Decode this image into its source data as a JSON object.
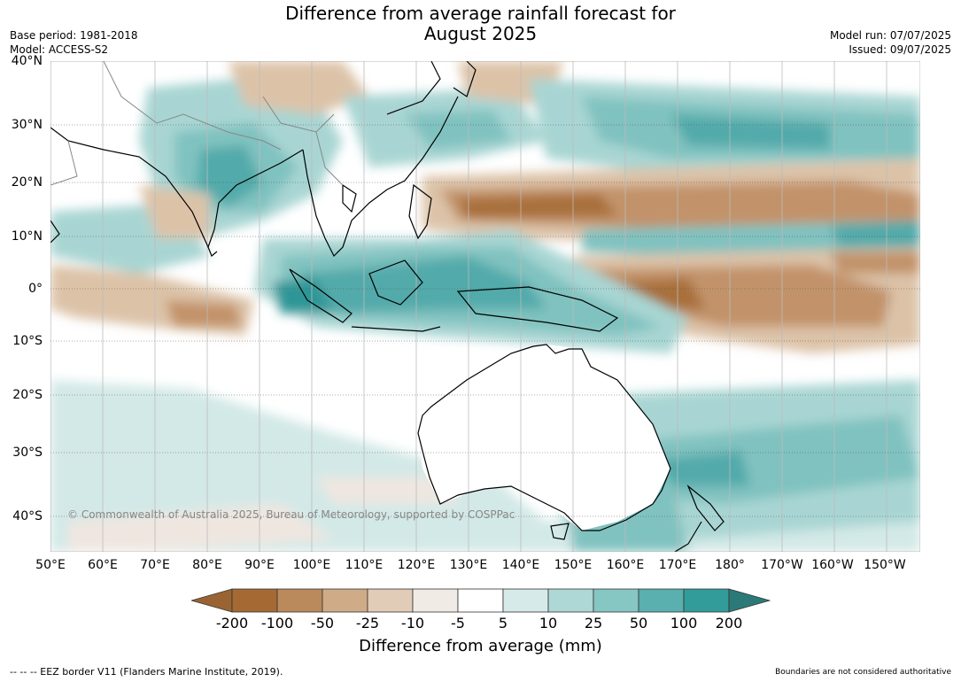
{
  "title": {
    "line1": "Difference from average rainfall forecast for",
    "line2": "August 2025"
  },
  "meta": {
    "base_period": "Base period: 1981-2018",
    "model": "Model: ACCESS-S2",
    "model_run": "Model run: 07/07/2025",
    "issued": "Issued: 09/07/2025"
  },
  "map": {
    "lat_labels": [
      "40°N",
      "30°N",
      "20°N",
      "10°N",
      "0°",
      "10°S",
      "20°S",
      "30°S",
      "40°S"
    ],
    "lon_labels": [
      "50°E",
      "60°E",
      "70°E",
      "80°E",
      "90°E",
      "100°E",
      "110°E",
      "120°E",
      "130°E",
      "140°E",
      "150°E",
      "160°E",
      "170°E",
      "180°",
      "170°W",
      "160°W",
      "150°W"
    ],
    "copyright": "© Commonwealth of Australia 2025, Bureau of Meteorology, supported by COSPPac",
    "colors": {
      "dry_strong": "#a8703a",
      "dry_mid": "#c2936a",
      "dry_light": "#dcc3a8",
      "dry_faint": "#efe6e0",
      "wet_faint": "#d3e9e7",
      "wet_light": "#a8d5d3",
      "wet_mid": "#80c2c0",
      "wet_strong": "#52aaaa",
      "wet_max": "#2e9696"
    }
  },
  "colorbar": {
    "title": "Difference from average (mm)",
    "labels": [
      "-200",
      "-100",
      "-50",
      "-25",
      "-10",
      "-5",
      "5",
      "10",
      "25",
      "50",
      "100",
      "200"
    ],
    "colors": [
      "#a56a34",
      "#ba8a5c",
      "#cfab88",
      "#e1ccb8",
      "#f1ebe6",
      "#ffffff",
      "#d6eaea",
      "#add8d6",
      "#86c6c3",
      "#5aafaf",
      "#319c9a"
    ],
    "ext_low": "#9a6432",
    "ext_high": "#2b7a78"
  },
  "footer": {
    "eez": "--  --  -- EEZ border V11 (Flanders Marine Institute, 2019).",
    "boundaries": "Boundaries are not considered authoritative"
  }
}
